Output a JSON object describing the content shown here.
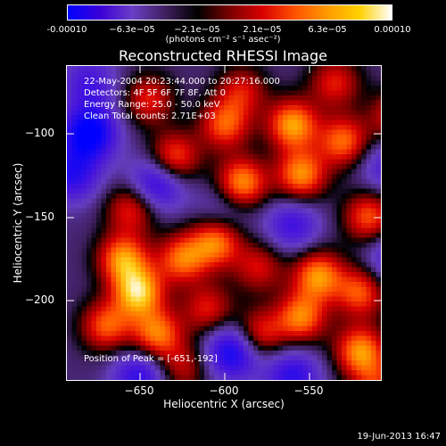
{
  "colorbar": {
    "ticks": [
      "-0.00010",
      "−6.3e−05",
      "−2.1e−05",
      "2.1e−05",
      "6.3e−05",
      "0.00010"
    ],
    "units": "(photons cm⁻² s⁻¹ asec⁻²)",
    "colors": [
      "#0000ff",
      "#3b00d6",
      "#6b3fc6",
      "#402060",
      "#000000",
      "#7a0000",
      "#d80000",
      "#ff5000",
      "#ff9a00",
      "#ffd000",
      "#ffffff"
    ]
  },
  "title": "Reconstructed RHESSI Image",
  "info": {
    "line1": "22-May-2004 20:23:44.000 to 20:27:16.000",
    "line2": "Detectors: 4F 5F 6F 7F 8F, Att 0",
    "line3": "Energy Range: 25.0 - 50.0 keV",
    "line4": "Clean     Total counts: 2.71E+03"
  },
  "peak_label": "Position of Peak = [-651,-192]",
  "xaxis": {
    "label": "Heliocentric X (arcsec)",
    "ticks": [
      "−650",
      "−600",
      "−550"
    ]
  },
  "yaxis": {
    "label": "Heliocentric Y (arcsec)",
    "ticks": [
      "−100",
      "−150",
      "−200"
    ]
  },
  "footer": "19-Jun-2013 16:47",
  "image": {
    "peak": [
      -651,
      -192
    ],
    "blobs": [
      {
        "x": -651,
        "y": -195,
        "v": 1.0
      },
      {
        "x": -660,
        "y": -175,
        "v": 0.85
      },
      {
        "x": -640,
        "y": -220,
        "v": 0.8
      },
      {
        "x": -625,
        "y": -175,
        "v": 0.75
      },
      {
        "x": -670,
        "y": -215,
        "v": 0.7
      },
      {
        "x": -605,
        "y": -165,
        "v": 0.8
      },
      {
        "x": -590,
        "y": -130,
        "v": 0.9
      },
      {
        "x": -555,
        "y": -125,
        "v": 0.85
      },
      {
        "x": -560,
        "y": -95,
        "v": 0.9
      },
      {
        "x": -530,
        "y": -105,
        "v": 0.75
      },
      {
        "x": -600,
        "y": -95,
        "v": 0.7
      },
      {
        "x": -630,
        "y": -115,
        "v": 0.75
      },
      {
        "x": -645,
        "y": -80,
        "v": 0.55
      },
      {
        "x": -655,
        "y": -145,
        "v": 0.6
      },
      {
        "x": -545,
        "y": -185,
        "v": 0.85
      },
      {
        "x": -555,
        "y": -210,
        "v": 0.8
      },
      {
        "x": -520,
        "y": -230,
        "v": 0.85
      },
      {
        "x": -520,
        "y": -195,
        "v": 0.7
      },
      {
        "x": -580,
        "y": -220,
        "v": 0.65
      },
      {
        "x": -610,
        "y": -205,
        "v": 0.55
      },
      {
        "x": -625,
        "y": -240,
        "v": 0.45
      },
      {
        "x": -515,
        "y": -150,
        "v": 0.7
      },
      {
        "x": -580,
        "y": -180,
        "v": 0.5
      },
      {
        "x": -535,
        "y": -70,
        "v": 0.55
      },
      {
        "x": -590,
        "y": -75,
        "v": 0.5
      },
      {
        "x": -500,
        "y": -90,
        "v": 0.55
      },
      {
        "x": -510,
        "y": -250,
        "v": 0.5
      }
    ],
    "dips": [
      {
        "x": -680,
        "y": -100,
        "v": 0.9
      },
      {
        "x": -690,
        "y": -125,
        "v": 0.6
      },
      {
        "x": -640,
        "y": -130,
        "v": 0.7
      },
      {
        "x": -595,
        "y": -230,
        "v": 0.8
      },
      {
        "x": -650,
        "y": -245,
        "v": 0.6
      },
      {
        "x": -560,
        "y": -245,
        "v": 0.6
      },
      {
        "x": -560,
        "y": -155,
        "v": 0.5
      },
      {
        "x": -500,
        "y": -175,
        "v": 0.5
      },
      {
        "x": -600,
        "y": -145,
        "v": 0.3
      },
      {
        "x": -505,
        "y": -120,
        "v": 0.4
      },
      {
        "x": -680,
        "y": -70,
        "v": 0.45
      }
    ]
  }
}
